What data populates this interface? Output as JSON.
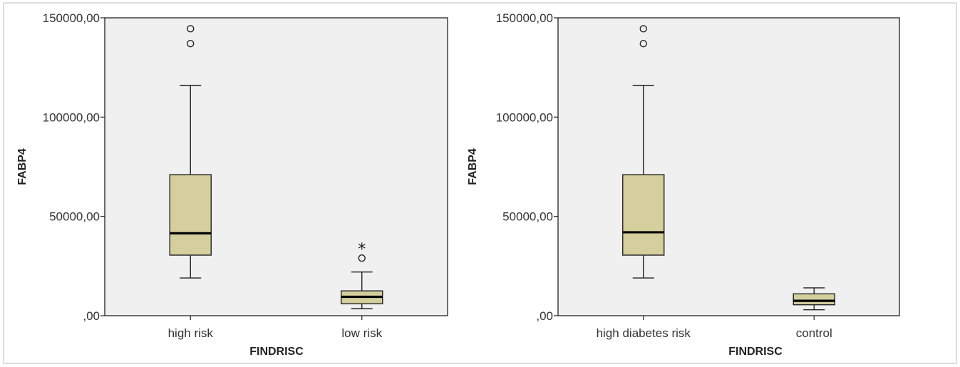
{
  "colors": {
    "plot_background": "#f0f0f0",
    "box_fill": "#d4cf9c",
    "stroke": "#222222",
    "text": "#333333"
  },
  "chart_data": [
    {
      "type": "boxplot",
      "xlabel": "FINDRISC",
      "ylabel": "FABP4",
      "ylim": [
        0,
        150000
      ],
      "y_ticks": [
        0,
        50000,
        100000,
        150000
      ],
      "y_tick_labels": [
        ",00",
        "50000,00",
        "100000,00",
        "150000,00"
      ],
      "grid": false,
      "categories": [
        "high risk",
        "low risk"
      ],
      "boxes": [
        {
          "min": 19000,
          "q1": 30500,
          "median": 41500,
          "q3": 71000,
          "max": 116000,
          "outliers": [
            137000,
            144500
          ],
          "extremes": []
        },
        {
          "min": 3500,
          "q1": 6000,
          "median": 9500,
          "q3": 12500,
          "max": 22000,
          "outliers": [
            29000
          ],
          "extremes": [
            34500
          ]
        }
      ]
    },
    {
      "type": "boxplot",
      "xlabel": "FINDRISC",
      "ylabel": "FABP4",
      "ylim": [
        0,
        150000
      ],
      "y_ticks": [
        0,
        50000,
        100000,
        150000
      ],
      "y_tick_labels": [
        ",00",
        "50000,00",
        "100000,00",
        "150000,00"
      ],
      "grid": false,
      "categories": [
        "high diabetes risk",
        "control"
      ],
      "boxes": [
        {
          "min": 19000,
          "q1": 30500,
          "median": 42000,
          "q3": 71000,
          "max": 116000,
          "outliers": [
            137000,
            144500
          ],
          "extremes": []
        },
        {
          "min": 3000,
          "q1": 5500,
          "median": 7500,
          "q3": 11000,
          "max": 14000,
          "outliers": [],
          "extremes": []
        }
      ]
    }
  ]
}
